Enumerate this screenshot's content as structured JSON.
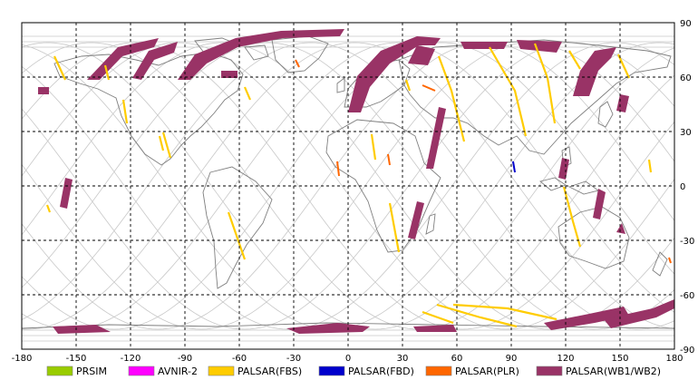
{
  "map": {
    "lon_ticks": [
      "-180",
      "-150",
      "-120",
      "-90",
      "-60",
      "-30",
      "0",
      "30",
      "60",
      "90",
      "120",
      "150",
      "180"
    ],
    "lat_ticks": [
      "90",
      "60",
      "30",
      "0",
      "-30",
      "-60",
      "-90"
    ],
    "frame_color": "#000000",
    "grid_color": "#000000",
    "orbit_color": "#c8c8c8",
    "coast_color": "#7f7f7f"
  },
  "legend": [
    {
      "label": "PRSIM",
      "color": "#99cc00"
    },
    {
      "label": "AVNIR-2",
      "color": "#ff00ff"
    },
    {
      "label": "PALSAR(FBS)",
      "color": "#ffcc00"
    },
    {
      "label": "PALSAR(FBD)",
      "color": "#0000cc"
    },
    {
      "label": "PALSAR(PLR)",
      "color": "#ff6600"
    },
    {
      "label": "PALSAR(WB1/WB2)",
      "color": "#993366"
    }
  ]
}
